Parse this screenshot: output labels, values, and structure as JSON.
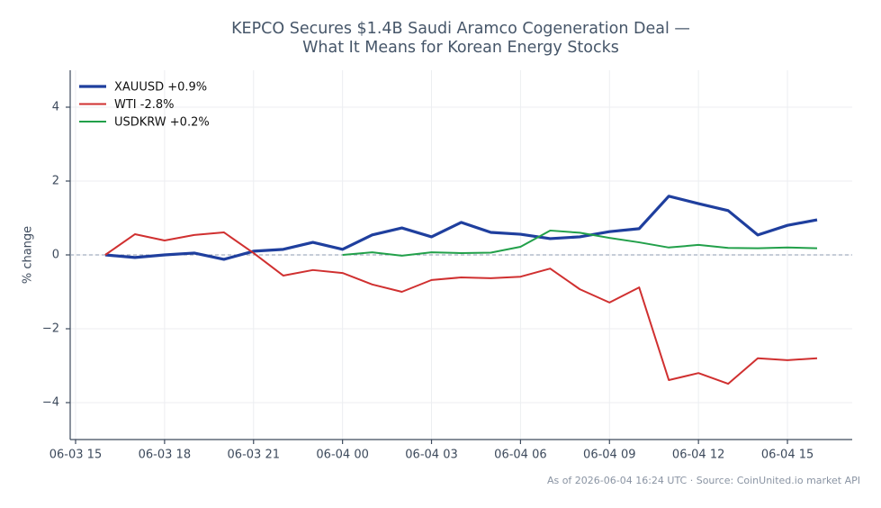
{
  "chart_data": {
    "type": "line",
    "title": [
      "KEPCO Secures $1.4B Saudi Aramco Cogeneration Deal —",
      "What It Means for Korean Energy Stocks"
    ],
    "ylabel": "% change",
    "footer": "As of 2026-06-04 16:24 UTC · Source: CoinUnited.io market API",
    "x": [
      "06-03 16",
      "06-03 17",
      "06-03 18",
      "06-03 19",
      "06-03 20",
      "06-03 21",
      "06-03 22",
      "06-03 23",
      "06-04 00",
      "06-04 01",
      "06-04 02",
      "06-04 03",
      "06-04 04",
      "06-04 05",
      "06-04 06",
      "06-04 07",
      "06-04 08",
      "06-04 09",
      "06-04 10",
      "06-04 11",
      "06-04 12",
      "06-04 13",
      "06-04 14",
      "06-04 15",
      "06-04 16"
    ],
    "series": [
      {
        "name": "XAUUSD +0.9%",
        "color": "#1f3f9e",
        "values": [
          0,
          -0.07,
          0,
          0.05,
          -0.12,
          0.1,
          0.15,
          0.34,
          0.15,
          0.54,
          0.73,
          0.49,
          0.88,
          0.61,
          0.56,
          0.44,
          0.49,
          0.63,
          0.71,
          1.59,
          1.39,
          1.2,
          0.54,
          0.8,
          0.95
        ]
      },
      {
        "name": "WTI -2.8%",
        "color": "#d03030",
        "values": [
          0,
          0.56,
          0.39,
          0.54,
          0.61,
          0.05,
          -0.56,
          -0.41,
          -0.49,
          -0.8,
          -1.0,
          -0.68,
          -0.61,
          -0.63,
          -0.59,
          -0.37,
          -0.93,
          -1.29,
          -0.88,
          -3.39,
          -3.2,
          -3.49,
          -2.8,
          -2.85,
          -2.8
        ]
      },
      {
        "name": "USDKRW +0.2%",
        "color": "#22a04a",
        "values": [
          null,
          null,
          null,
          null,
          null,
          null,
          null,
          null,
          0,
          0.07,
          -0.02,
          0.07,
          0.05,
          0.06,
          0.22,
          0.66,
          0.6,
          0.46,
          0.34,
          0.2,
          0.27,
          0.19,
          0.18,
          0.2,
          0.18
        ]
      }
    ],
    "xticks": [
      "06-03 15",
      "06-03 18",
      "06-03 21",
      "06-04 00",
      "06-04 03",
      "06-04 06",
      "06-04 09",
      "06-04 12",
      "06-04 15"
    ],
    "ylim": [
      -5,
      5
    ],
    "yticks": [
      {
        "value": -4,
        "label": "−4"
      },
      {
        "value": -2,
        "label": "−2"
      },
      0,
      2,
      4
    ],
    "grid": true,
    "legend": "upper left",
    "reference_line": 0
  }
}
